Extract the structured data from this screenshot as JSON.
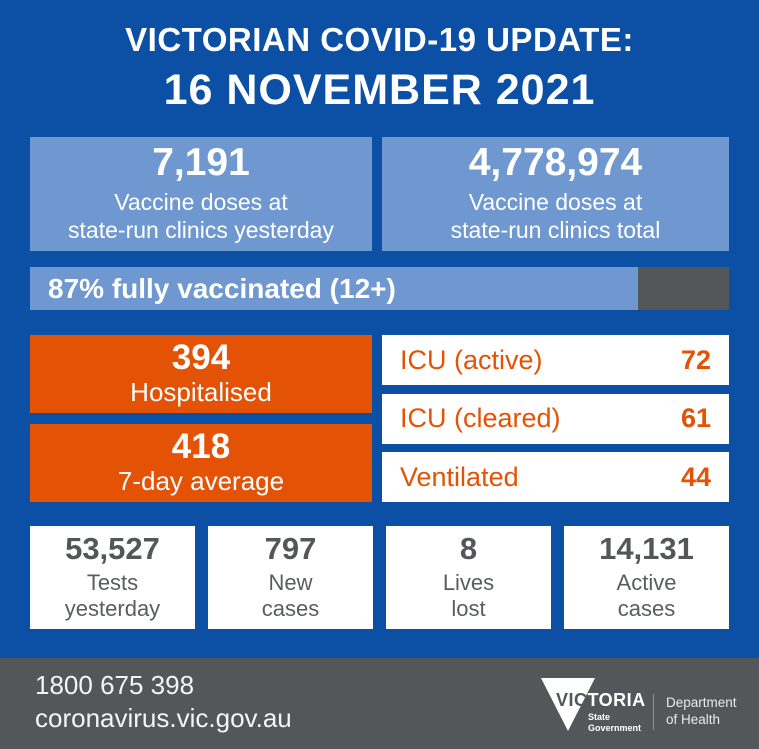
{
  "colors": {
    "background": "#0b50a5",
    "tile_blue": "#6e98cf",
    "orange": "#e35205",
    "slate": "#54575a",
    "text_dark": "#54575a"
  },
  "header": {
    "title": "VICTORIAN COVID-19 UPDATE:",
    "date": "16 NOVEMBER 2021"
  },
  "vaccine_tiles": [
    {
      "value": "7,191",
      "line1": "Vaccine doses at",
      "line2": "state-run clinics yesterday"
    },
    {
      "value": "4,778,974",
      "line1": "Vaccine doses at",
      "line2": "state-run clinics total"
    }
  ],
  "vaccination_bar": {
    "label": "87% fully vaccinated (12+)",
    "percent": 87
  },
  "hospital_tiles": [
    {
      "value": "394",
      "label": "Hospitalised"
    },
    {
      "value": "418",
      "label": "7-day average"
    }
  ],
  "icu_rows": [
    {
      "label": "ICU (active)",
      "value": "72"
    },
    {
      "label": "ICU (cleared)",
      "value": "61"
    },
    {
      "label": "Ventilated",
      "value": "44"
    }
  ],
  "summary_tiles": [
    {
      "value": "53,527",
      "line1": "Tests",
      "line2": "yesterday"
    },
    {
      "value": "797",
      "line1": "New",
      "line2": "cases"
    },
    {
      "value": "8",
      "line1": "Lives",
      "line2": "lost"
    },
    {
      "value": "14,131",
      "line1": "Active",
      "line2": "cases"
    }
  ],
  "footer": {
    "phone": "1800 675 398",
    "website": "coronavirus.vic.gov.au",
    "logo": {
      "victoria_carved": "VIC",
      "victoria_rest": "TORIA",
      "state": "State",
      "government": "Government",
      "department_line1": "Department",
      "department_line2": "of Health"
    }
  }
}
